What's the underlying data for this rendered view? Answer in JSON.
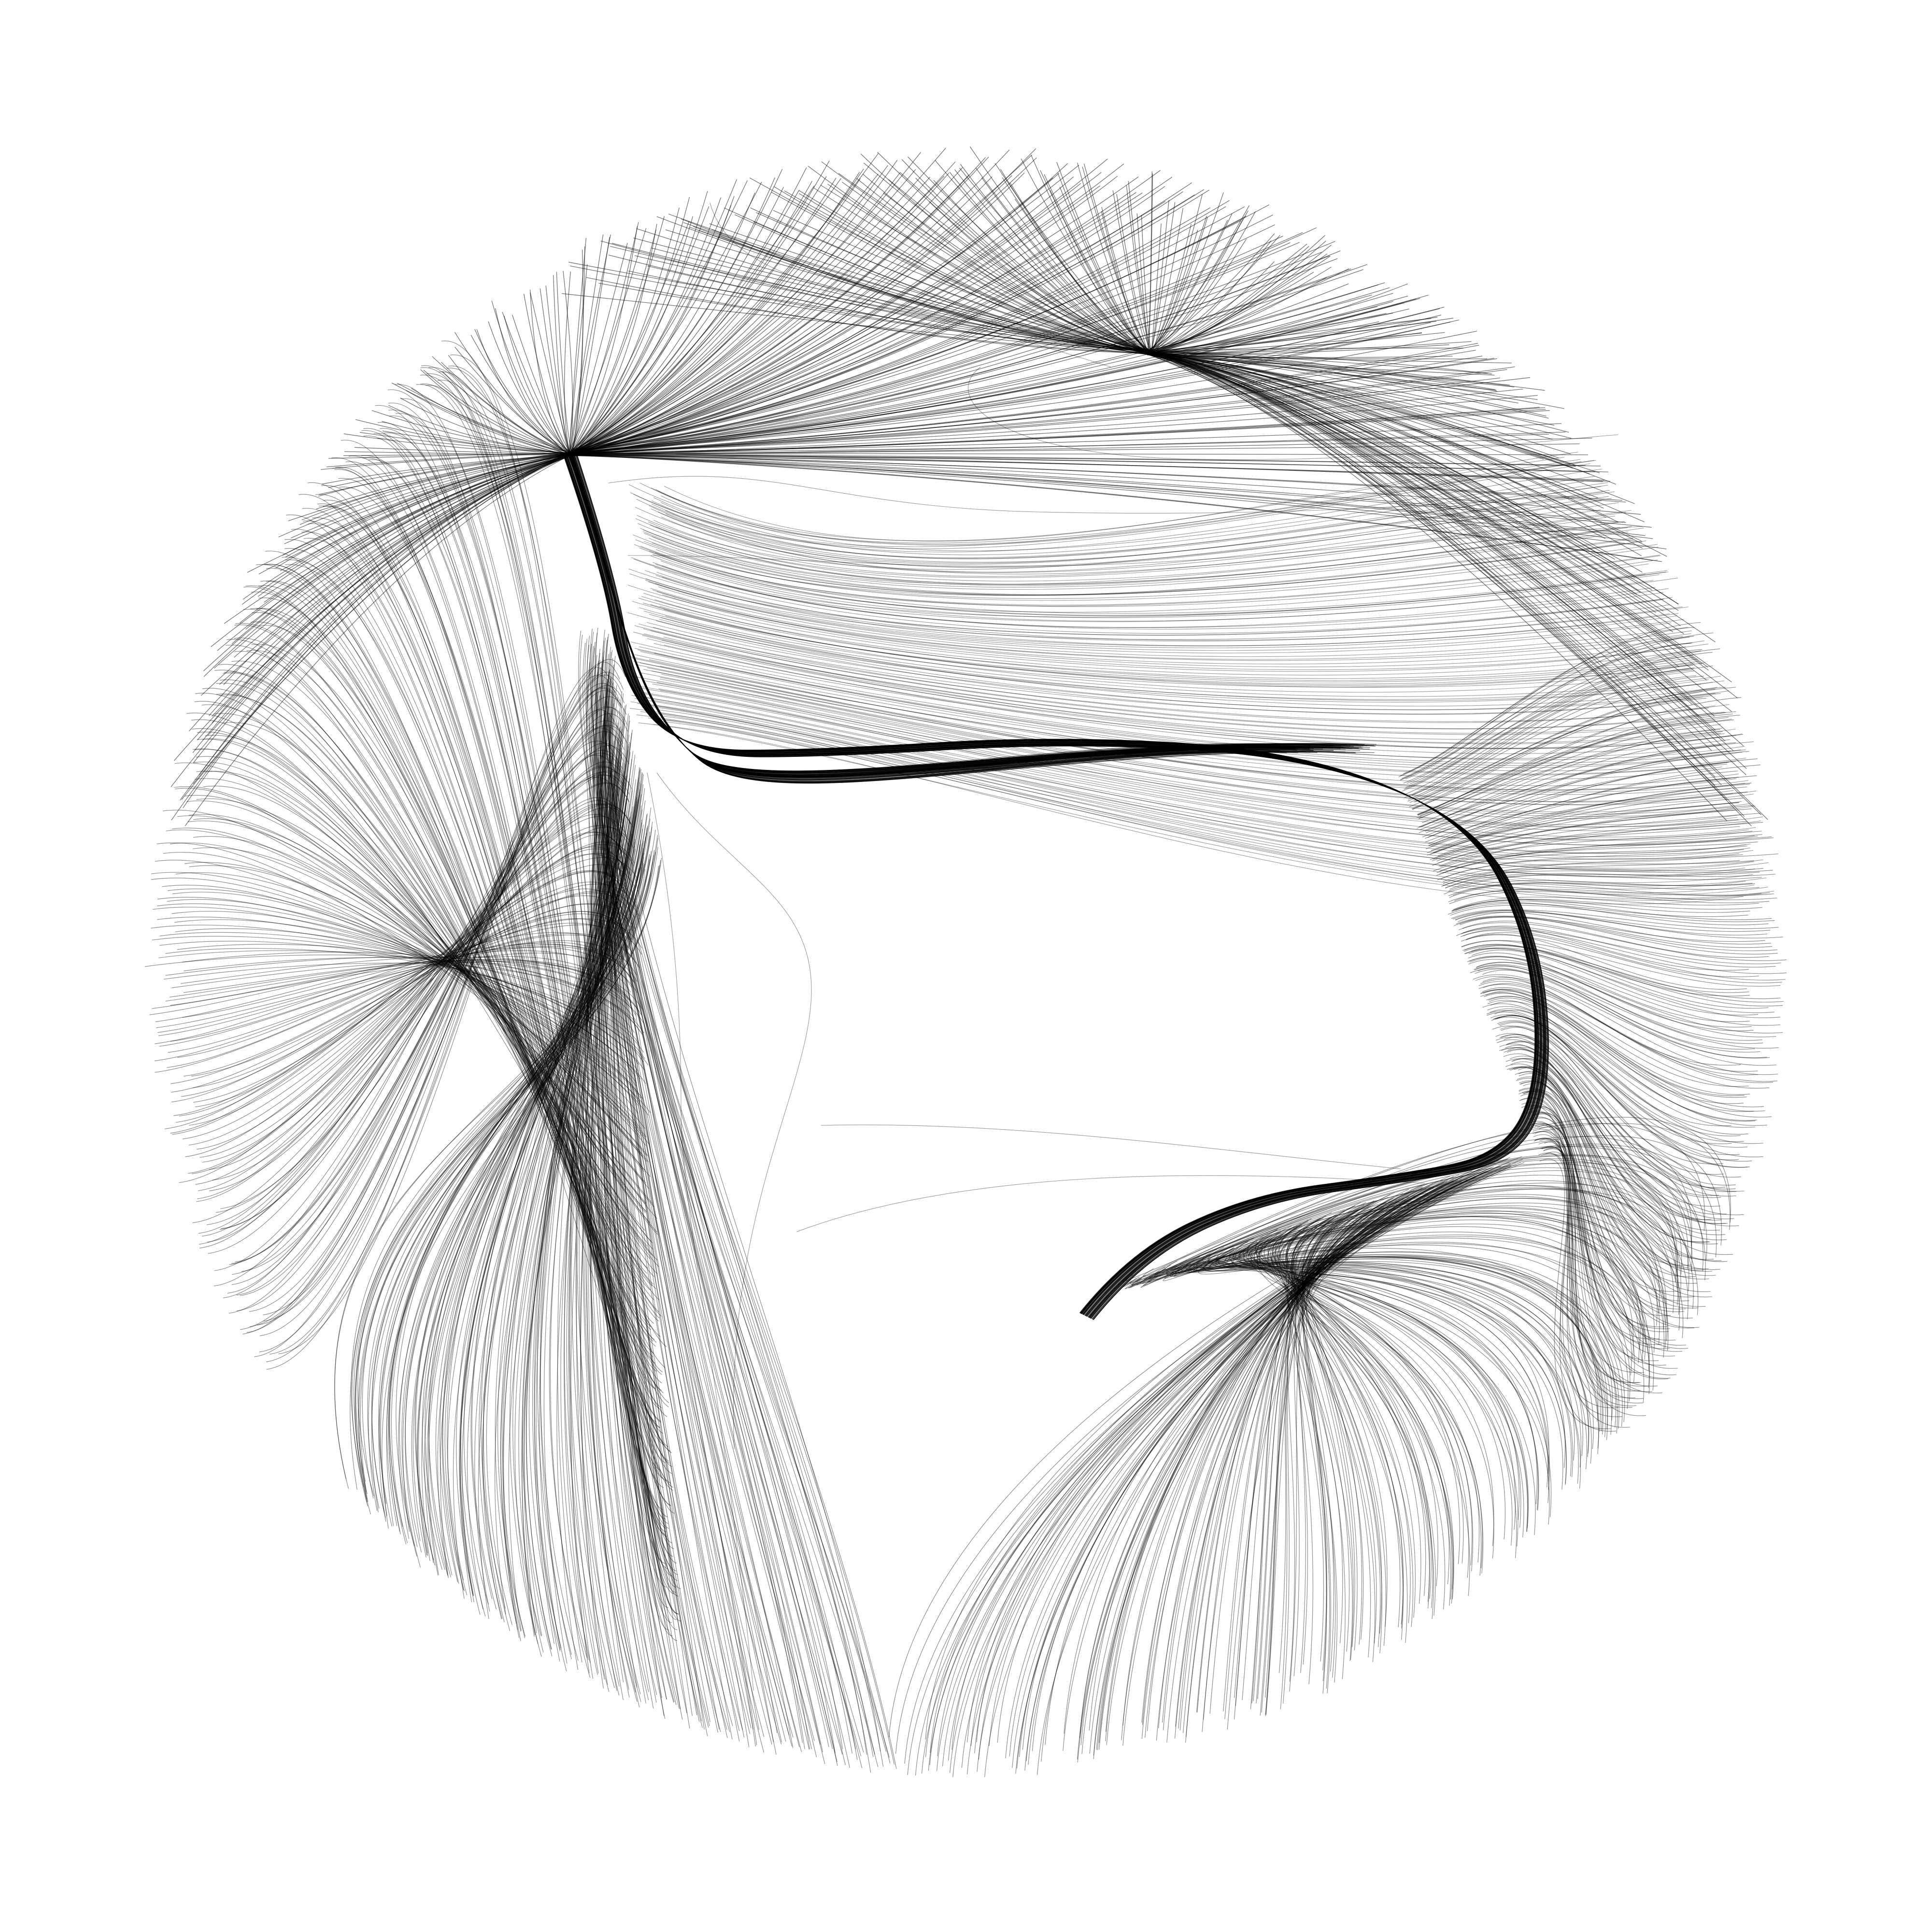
{
  "artwork": {
    "kind": "generative line art",
    "description_shape": "circular field of flowing strokes",
    "background_color": "#ffffff",
    "stroke_color": "#000000",
    "attractors": [
      {
        "name": "upper-left-vortex"
      },
      {
        "name": "upper-right-vortex"
      },
      {
        "name": "central-s-curve-channel"
      }
    ]
  }
}
